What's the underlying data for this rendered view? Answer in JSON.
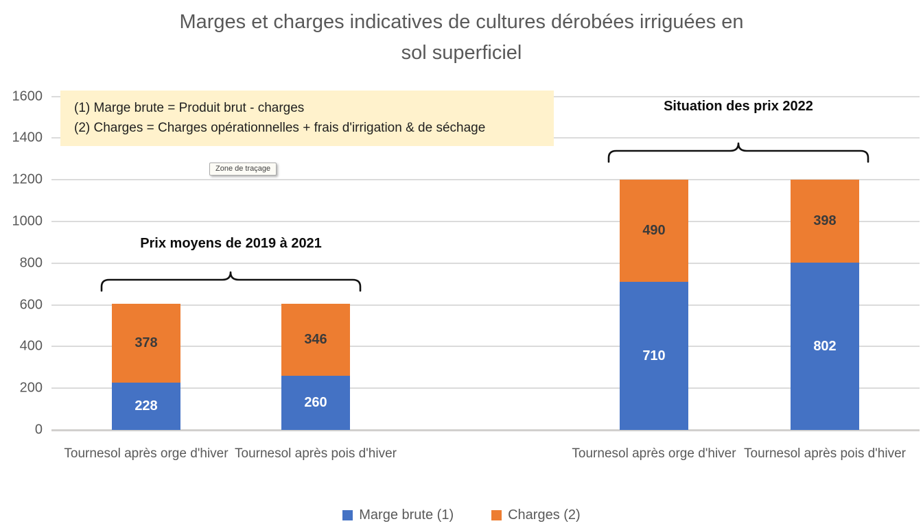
{
  "title": {
    "line1": "Marges et charges indicatives de cultures dérobées irriguées en",
    "line2": "sol superficiel"
  },
  "note_box": {
    "line1": "(1) Marge brute = Produit brut - charges",
    "line2": "(2) Charges = Charges opérationnelles + frais d'irrigation & de séchage",
    "background": "#FFF2CC"
  },
  "tooltip": {
    "text": "Zone de traçage"
  },
  "annotations": {
    "left_group_label": "Prix moyens de 2019 à 2021",
    "right_group_label": "Situation des prix 2022"
  },
  "legend": {
    "items": [
      {
        "label": "Marge brute (1)",
        "color": "#4472C4"
      },
      {
        "label": "Charges (2)",
        "color": "#ED7D31"
      }
    ],
    "position": "bottom"
  },
  "colors": {
    "marge_brute": "#4472C4",
    "charges": "#ED7D31",
    "axis_text": "#595959",
    "gridline": "#DBDBDB",
    "title_text": "#595959",
    "note_background": "#FFF2CC"
  },
  "chart_data": {
    "type": "bar",
    "stacked": true,
    "title": "Marges et charges indicatives de cultures dérobées irriguées en sol superficiel",
    "categories": [
      "Tournesol après orge d'hiver",
      "Tournesol après pois d'hiver",
      "Tournesol après orge d'hiver",
      "Tournesol après pois d'hiver"
    ],
    "series": [
      {
        "name": "Marge brute (1)",
        "color": "#4472C4",
        "label_color": "#FFFFFF",
        "values": [
          228,
          260,
          710,
          802
        ]
      },
      {
        "name": "Charges (2)",
        "color": "#ED7D31",
        "label_color": "#3B3B3B",
        "values": [
          378,
          346,
          490,
          398
        ]
      }
    ],
    "groups": [
      {
        "label": "Prix moyens de 2019 à 2021",
        "category_indexes": [
          0,
          1
        ]
      },
      {
        "label": "Situation des prix 2022",
        "category_indexes": [
          2,
          3
        ]
      }
    ],
    "totals": [
      606,
      606,
      1200,
      1200
    ],
    "yticks": [
      0,
      200,
      400,
      600,
      800,
      1000,
      1200,
      1400,
      1600
    ],
    "ylim": [
      0,
      1600
    ],
    "grid": true,
    "legend_position": "bottom",
    "annotations": [
      "(1) Marge brute = Produit brut - charges",
      "(2) Charges = Charges opérationnelles + frais d'irrigation & de séchage",
      "Zone de traçage"
    ]
  }
}
